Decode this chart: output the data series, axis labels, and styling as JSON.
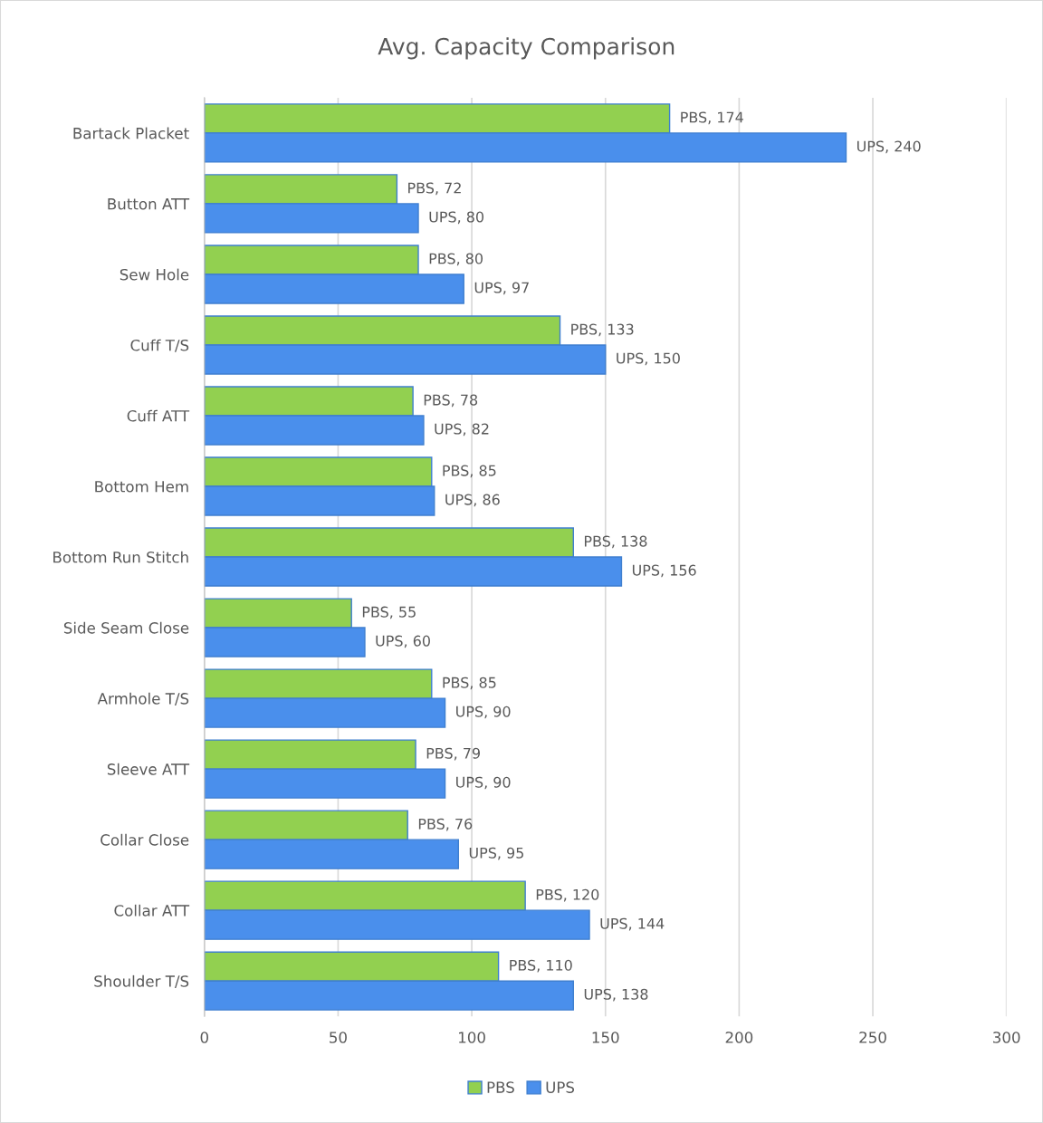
{
  "chart_data": {
    "type": "bar",
    "orientation": "horizontal",
    "title": "Avg. Capacity Comparison",
    "categories": [
      "Bartack Placket",
      "Button ATT",
      "Sew Hole",
      "Cuff T/S",
      "Cuff ATT",
      "Bottom Hem",
      "Bottom Run Stitch",
      "Side Seam Close",
      "Armhole T/S",
      "Sleeve ATT",
      "Collar Close",
      "Collar ATT",
      "Shoulder T/S"
    ],
    "series": [
      {
        "name": "PBS",
        "color": "#92d050",
        "values": [
          174,
          72,
          80,
          133,
          78,
          85,
          138,
          55,
          85,
          79,
          76,
          120,
          110
        ],
        "value_labels": [
          "PBS, 174",
          "PBS, 72",
          "PBS, 80",
          "PBS, 133",
          "PBS, 78",
          "PBS, 85",
          "PBS, 138",
          "PBS, 55",
          "PBS, 85",
          "PBS, 79",
          "PBS, 76",
          "PBS, 120",
          "PBS, 110"
        ]
      },
      {
        "name": "UPS",
        "color": "#4a8fec",
        "values": [
          240,
          80,
          97,
          150,
          82,
          86,
          156,
          60,
          90,
          90,
          95,
          144,
          138
        ],
        "value_labels": [
          "UPS, 240",
          "UPS, 80",
          "UPS, 97",
          "UPS, 150",
          "UPS, 82",
          "UPS, 86",
          "UPS, 156",
          "UPS, 60",
          "UPS, 90",
          "UPS, 90",
          "UPS, 95",
          "UPS, 144",
          "UPS, 138"
        ]
      }
    ],
    "xlim": [
      0,
      300
    ],
    "xticks": [
      0,
      50,
      100,
      150,
      200,
      250,
      300
    ],
    "grid": "x",
    "legend": "bottom"
  }
}
